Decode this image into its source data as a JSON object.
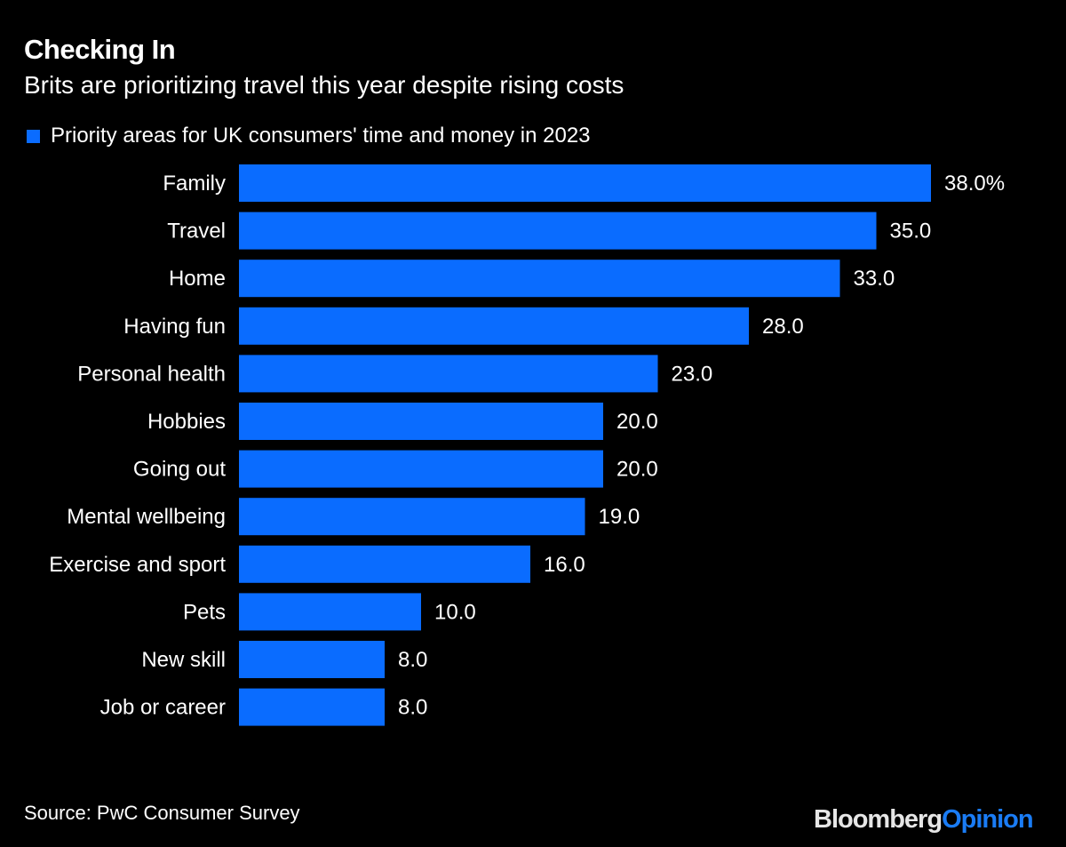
{
  "chart_data": {
    "type": "bar",
    "orientation": "horizontal",
    "title": "Checking In",
    "subtitle": "Brits are prioritizing travel this year despite rising costs",
    "legend": {
      "entries": [
        "Priority areas for UK consumers' time and money in 2023"
      ],
      "placement": "top-left"
    },
    "categories": [
      "Family",
      "Travel",
      "Home",
      "Having fun",
      "Personal health",
      "Hobbies",
      "Going out",
      "Mental wellbeing",
      "Exercise and sport",
      "Pets",
      "New skill",
      "Job or career"
    ],
    "values": [
      38.0,
      35.0,
      33.0,
      28.0,
      23.0,
      20.0,
      20.0,
      19.0,
      16.0,
      10.0,
      8.0,
      8.0
    ],
    "data_labels": [
      "38.0%",
      "35.0",
      "33.0",
      "28.0",
      "23.0",
      "20.0",
      "20.0",
      "19.0",
      "16.0",
      "10.0",
      "8.0",
      "8.0"
    ],
    "xlim": [
      0,
      38
    ],
    "grid": false,
    "bar_color": "#0a6cff"
  },
  "footer": {
    "source": "Source: PwC Consumer Survey",
    "logo_part1": "Bloomberg",
    "logo_part2": "Opinion",
    "logo_accent": "#1a7cf5"
  },
  "colors": {
    "background": "#000000",
    "text": "#ffffff"
  }
}
